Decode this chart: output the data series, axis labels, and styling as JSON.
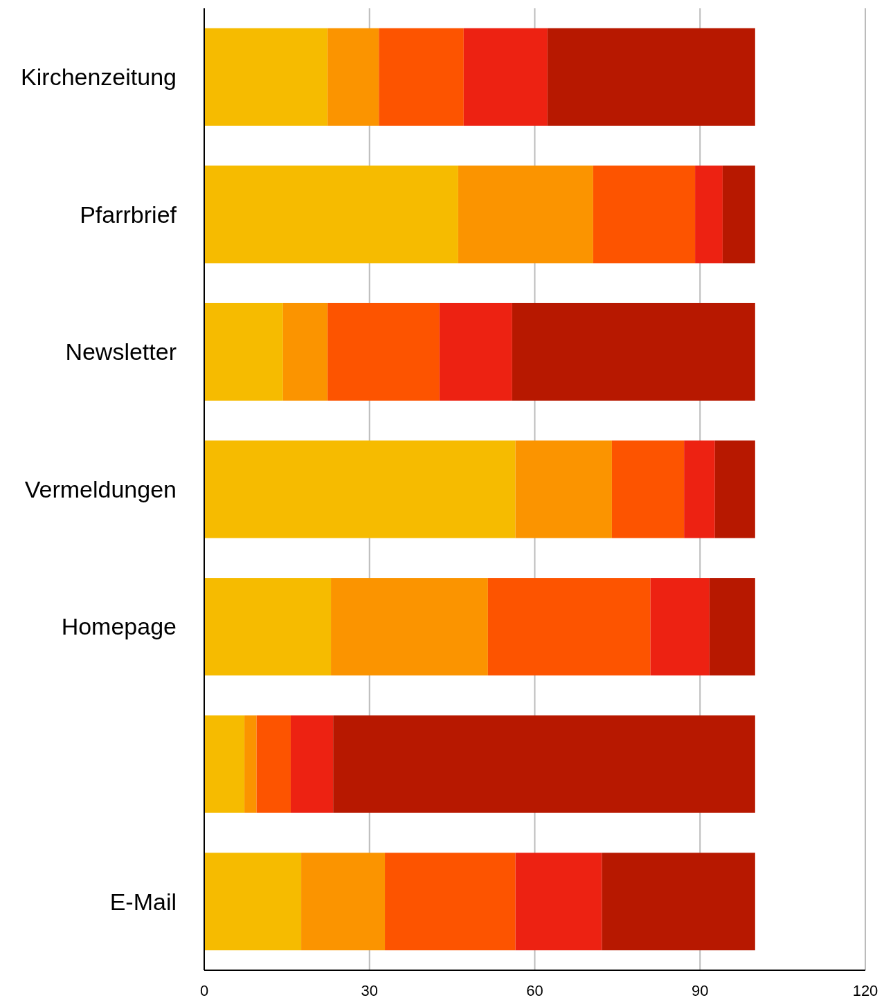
{
  "chart_data": {
    "type": "bar",
    "orientation": "horizontal",
    "stacked": true,
    "categories": [
      "Kirchenzeitung",
      "Pfarrbrief",
      "Newsletter",
      "Vermeldungen",
      "Homepage",
      null,
      "E-Mail"
    ],
    "series": [
      {
        "color": "#f6bb00",
        "values": [
          22.4,
          46.1,
          14.3,
          56.5,
          23,
          7.3,
          17.6
        ]
      },
      {
        "color": "#fb9400",
        "values": [
          9.3,
          24.5,
          8.1,
          17.5,
          28.5,
          2.2,
          15.2
        ]
      },
      {
        "color": "#fd5400",
        "values": [
          15.4,
          18.5,
          20.3,
          13.1,
          29.5,
          6.2,
          23.7
        ]
      },
      {
        "color": "#ed2212",
        "values": [
          15.2,
          5,
          13.2,
          5.6,
          10.7,
          7.7,
          15.7
        ]
      },
      {
        "color": "#b71800",
        "values": [
          37.7,
          5.9,
          44.1,
          7.3,
          8.3,
          76.6,
          27.8
        ]
      }
    ],
    "xlim": [
      0,
      120
    ],
    "xticks": [
      0,
      30,
      60,
      90,
      120
    ],
    "grid": "x"
  }
}
